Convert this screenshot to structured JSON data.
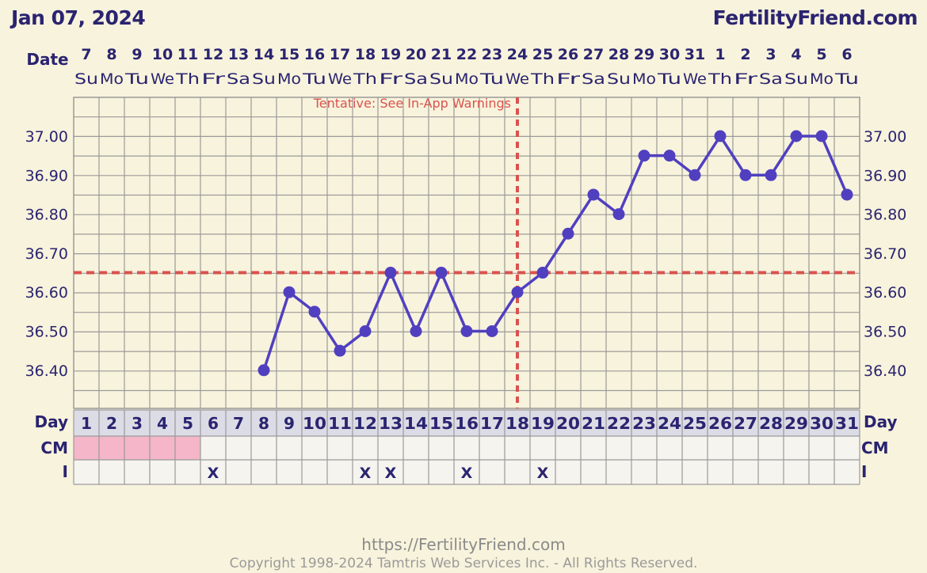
{
  "header": {
    "chart_date": "Jan 07, 2024",
    "brand": "FertilityFriend.com"
  },
  "labels": {
    "date_row": "Date",
    "day_row": "Day",
    "cm_row": "CM",
    "i_row": "I",
    "tentative_warning": "Tentative: See In-App Warnings"
  },
  "colors": {
    "background": "#f8f3dc",
    "text": "#2a2470",
    "temp_line": "#5040c0",
    "coverline": "#d9534f",
    "menstruation": "#f4b6c8",
    "grid": "#9a9a9a"
  },
  "footer": {
    "url": "https://FertilityFriend.com",
    "copyright": "Copyright 1998-2024 Tamtris Web Services Inc. - All Rights Reserved."
  },
  "chart_data": {
    "type": "line",
    "dates": [
      "7",
      "8",
      "9",
      "10",
      "11",
      "12",
      "13",
      "14",
      "15",
      "16",
      "17",
      "18",
      "19",
      "20",
      "21",
      "22",
      "23",
      "24",
      "25",
      "26",
      "27",
      "28",
      "29",
      "30",
      "31",
      "1",
      "2",
      "3",
      "4",
      "5",
      "6"
    ],
    "weekdays": [
      "Su",
      "Mo",
      "Tu",
      "We",
      "Th",
      "Fr",
      "Sa",
      "Su",
      "Mo",
      "Tu",
      "We",
      "Th",
      "Fr",
      "Sa",
      "Su",
      "Mo",
      "Tu",
      "We",
      "Th",
      "Fr",
      "Sa",
      "Su",
      "Mo",
      "Tu",
      "We",
      "Th",
      "Fr",
      "Sa",
      "Su",
      "Mo",
      "Tu"
    ],
    "cycle_days": [
      "1",
      "2",
      "3",
      "4",
      "5",
      "6",
      "7",
      "8",
      "9",
      "10",
      "11",
      "12",
      "13",
      "14",
      "15",
      "16",
      "17",
      "18",
      "19",
      "20",
      "21",
      "22",
      "23",
      "24",
      "25",
      "26",
      "27",
      "28",
      "29",
      "30",
      "31"
    ],
    "temperatures": [
      null,
      null,
      null,
      null,
      null,
      null,
      null,
      36.4,
      36.6,
      36.55,
      36.45,
      36.5,
      36.65,
      36.5,
      36.65,
      36.5,
      36.5,
      36.6,
      36.65,
      36.75,
      36.85,
      36.8,
      36.95,
      36.95,
      36.9,
      37.0,
      36.9,
      36.9,
      37.0,
      37.0,
      36.85
    ],
    "y_ticks": [
      "37.00",
      "36.90",
      "36.80",
      "36.70",
      "36.60",
      "36.50",
      "36.40"
    ],
    "ylim": [
      36.3,
      37.1
    ],
    "coverline": 36.65,
    "ovulation_day": 18,
    "cm_menstruation_days": [
      1,
      2,
      3,
      4,
      5
    ],
    "intercourse_days": [
      6,
      12,
      13,
      16,
      19
    ],
    "intercourse_mark": "X"
  }
}
